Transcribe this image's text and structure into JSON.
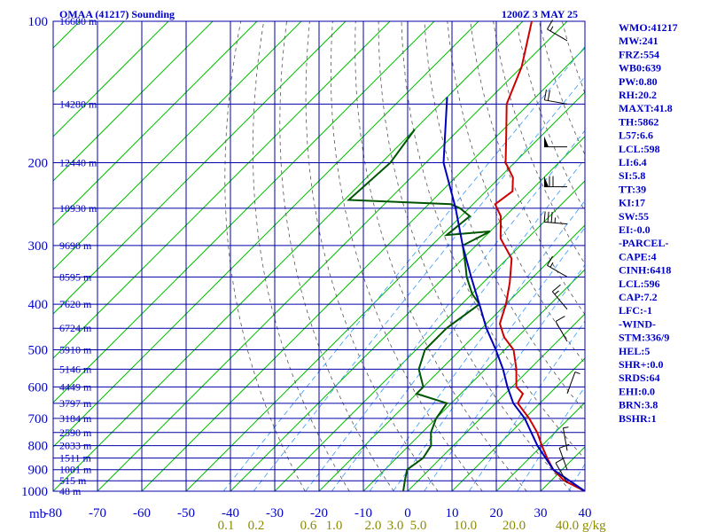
{
  "chart_data": {
    "type": "line",
    "title": "OMAA (41217) Sounding",
    "time_label": "1200Z  3 MAY 25",
    "pressure_ticks": [
      100,
      200,
      300,
      400,
      500,
      600,
      700,
      800,
      900,
      1000
    ],
    "pressure_unit": "mb",
    "temperature_ticks": [
      -80,
      -70,
      -60,
      -50,
      -40,
      -30,
      -20,
      -10,
      0,
      10,
      20,
      30,
      40
    ],
    "mixing_ratio_ticks": [
      "0.1",
      "0.2",
      "0.6",
      "1.0",
      "2.0",
      "3.0",
      "5.0",
      "10.0",
      "20.0",
      "40.0"
    ],
    "mixing_ratio_unit": "g/kg",
    "height_labels": [
      {
        "p": 100,
        "label": "16680 m"
      },
      {
        "p": 150,
        "label": "14280 m"
      },
      {
        "p": 200,
        "label": "12440 m"
      },
      {
        "p": 250,
        "label": "10930 m"
      },
      {
        "p": 300,
        "label": "9690 m"
      },
      {
        "p": 350,
        "label": "8595 m"
      },
      {
        "p": 400,
        "label": "7620 m"
      },
      {
        "p": 450,
        "label": "6724 m"
      },
      {
        "p": 500,
        "label": "5910 m"
      },
      {
        "p": 550,
        "label": "5146 m"
      },
      {
        "p": 600,
        "label": "4449 m"
      },
      {
        "p": 650,
        "label": "3797 m"
      },
      {
        "p": 700,
        "label": "3184 m"
      },
      {
        "p": 750,
        "label": "2590 m"
      },
      {
        "p": 800,
        "label": "2033 m"
      },
      {
        "p": 850,
        "label": "1511 m"
      },
      {
        "p": 900,
        "label": "1001 m"
      },
      {
        "p": 950,
        "label": "515 m"
      },
      {
        "p": 1000,
        "label": "48 m"
      }
    ],
    "series": [
      {
        "name": "temperature",
        "color": "#cc0000",
        "points": [
          [
            100,
            -78
          ],
          [
            125,
            -70
          ],
          [
            150,
            -65
          ],
          [
            175,
            -58
          ],
          [
            200,
            -52
          ],
          [
            215,
            -47
          ],
          [
            230,
            -44
          ],
          [
            245,
            -45
          ],
          [
            260,
            -41
          ],
          [
            290,
            -36
          ],
          [
            320,
            -29
          ],
          [
            360,
            -24
          ],
          [
            400,
            -20
          ],
          [
            440,
            -17
          ],
          [
            470,
            -13
          ],
          [
            500,
            -8
          ],
          [
            550,
            -3
          ],
          [
            600,
            1
          ],
          [
            620,
            4
          ],
          [
            650,
            5
          ],
          [
            700,
            11
          ],
          [
            750,
            16
          ],
          [
            800,
            20
          ],
          [
            850,
            24
          ],
          [
            900,
            28
          ],
          [
            950,
            33
          ],
          [
            1000,
            40
          ]
        ]
      },
      {
        "name": "dewpoint",
        "color": "#005500",
        "points": [
          [
            170,
            -80
          ],
          [
            200,
            -78
          ],
          [
            240,
            -79
          ],
          [
            245,
            -55
          ],
          [
            250,
            -52
          ],
          [
            260,
            -48
          ],
          [
            285,
            -49
          ],
          [
            280,
            -40
          ],
          [
            300,
            -43
          ],
          [
            330,
            -38
          ],
          [
            350,
            -35
          ],
          [
            380,
            -30
          ],
          [
            400,
            -26
          ],
          [
            450,
            -28
          ],
          [
            500,
            -28
          ],
          [
            550,
            -25
          ],
          [
            600,
            -20
          ],
          [
            620,
            -20
          ],
          [
            650,
            -11
          ],
          [
            700,
            -10
          ],
          [
            750,
            -8
          ],
          [
            800,
            -5
          ],
          [
            850,
            -4
          ],
          [
            900,
            -5
          ],
          [
            950,
            -3
          ],
          [
            1000,
            -1
          ]
        ]
      },
      {
        "name": "parcel",
        "color": "#0000bb",
        "points": [
          [
            145,
            -80
          ],
          [
            200,
            -66
          ],
          [
            250,
            -53
          ],
          [
            300,
            -43
          ],
          [
            350,
            -34
          ],
          [
            400,
            -26
          ],
          [
            450,
            -19
          ],
          [
            500,
            -12
          ],
          [
            550,
            -6
          ],
          [
            600,
            -1
          ],
          [
            650,
            4
          ],
          [
            700,
            10
          ],
          [
            800,
            19
          ],
          [
            900,
            28
          ],
          [
            1000,
            40
          ]
        ]
      }
    ],
    "wind_barbs": [
      {
        "p": 110,
        "dir": 300,
        "speed": 15
      },
      {
        "p": 150,
        "dir": 280,
        "speed": 20
      },
      {
        "p": 185,
        "dir": 270,
        "speed": 50
      },
      {
        "p": 225,
        "dir": 270,
        "speed": 70
      },
      {
        "p": 270,
        "dir": 275,
        "speed": 35
      },
      {
        "p": 350,
        "dir": 300,
        "speed": 15
      },
      {
        "p": 410,
        "dir": 320,
        "speed": 15
      },
      {
        "p": 480,
        "dir": 330,
        "speed": 10
      },
      {
        "p": 620,
        "dir": 20,
        "speed": 5
      },
      {
        "p": 820,
        "dir": 350,
        "speed": 5
      },
      {
        "p": 900,
        "dir": 340,
        "speed": 10
      },
      {
        "p": 960,
        "dir": 330,
        "speed": 10
      }
    ],
    "stats": [
      "WMO:41217",
      "MW:241",
      "FRZ:554",
      "WB0:639",
      "PW:0.80",
      "RH:20.2",
      "MAXT:41.8",
      "TH:5862",
      "L57:6.6",
      "LCL:598",
      "LI:6.4",
      "SI:5.8",
      "TT:39",
      "KI:17",
      "SW:55",
      "EI:-0.0",
      "-PARCEL-",
      "CAPE:4",
      "CINH:6418",
      "LCL:596",
      "CAP:7.2",
      "LFC:-1",
      "-WIND-",
      "STM:336/9",
      "HEL:5",
      "SHR+:0.0",
      "SRDS:64",
      "EHI:0.0",
      "BRN:3.8",
      "BSHR:1"
    ],
    "colors": {
      "frame": "#0000aa",
      "isotherm": "#00bb00",
      "dry_adiabat": "#555555",
      "mixing_line": "#3399ff"
    }
  }
}
